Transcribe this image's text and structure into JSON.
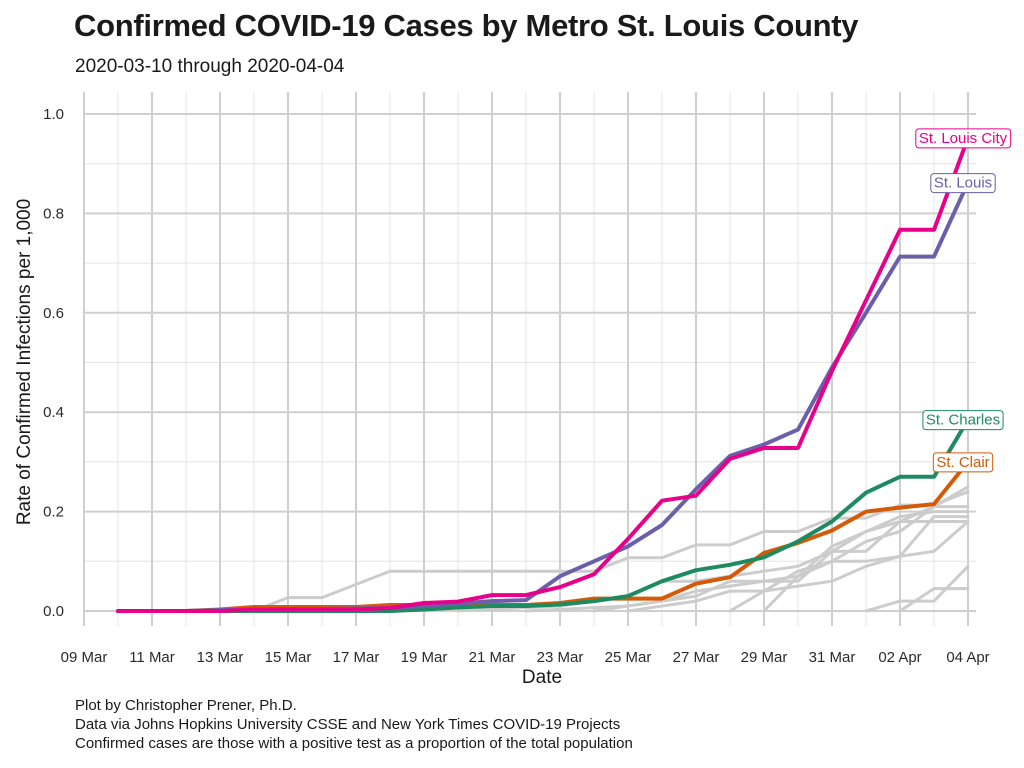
{
  "title": "Confirmed COVID-19 Cases by Metro St. Louis County",
  "subtitle": "2020-03-10 through 2020-04-04",
  "captions": [
    "Plot by Christopher Prener, Ph.D.",
    "Data via Johns Hopkins University CSSE and New York Times COVID-19 Projects",
    "Confirmed cases are those with a positive test as a proportion of the total population"
  ],
  "chart_data": {
    "type": "line",
    "xlabel": "Date",
    "ylabel": "Rate of Confirmed Infections per 1,000",
    "ylim": [
      0,
      1.0
    ],
    "y_ticks": [
      0.0,
      0.2,
      0.4,
      0.6,
      0.8,
      1.0
    ],
    "y_tick_labels": [
      "0.0",
      "0.2",
      "0.4",
      "0.6",
      "0.8",
      "1.0"
    ],
    "x_range": [
      "2020-03-09",
      "2020-04-04"
    ],
    "x_ticks": [
      "2020-03-09",
      "2020-03-11",
      "2020-03-13",
      "2020-03-15",
      "2020-03-17",
      "2020-03-19",
      "2020-03-21",
      "2020-03-23",
      "2020-03-25",
      "2020-03-27",
      "2020-03-29",
      "2020-03-31",
      "2020-04-02",
      "2020-04-04"
    ],
    "x_tick_labels": [
      "09 Mar",
      "11 Mar",
      "13 Mar",
      "15 Mar",
      "17 Mar",
      "19 Mar",
      "21 Mar",
      "23 Mar",
      "25 Mar",
      "27 Mar",
      "29 Mar",
      "31 Mar",
      "02 Apr",
      "04 Apr"
    ],
    "grid": true,
    "highlighted_series": [
      {
        "name": "St. Louis City",
        "color": "#e7008a",
        "x": [
          "2020-03-10",
          "2020-03-11",
          "2020-03-12",
          "2020-03-13",
          "2020-03-14",
          "2020-03-15",
          "2020-03-16",
          "2020-03-17",
          "2020-03-18",
          "2020-03-19",
          "2020-03-20",
          "2020-03-21",
          "2020-03-22",
          "2020-03-23",
          "2020-03-24",
          "2020-03-25",
          "2020-03-26",
          "2020-03-27",
          "2020-03-28",
          "2020-03-29",
          "2020-03-30",
          "2020-03-31",
          "2020-04-01",
          "2020-04-02",
          "2020-04-03",
          "2020-04-04"
        ],
        "y": [
          0,
          0,
          0,
          0,
          0.003,
          0.003,
          0.003,
          0.003,
          0.006,
          0.016,
          0.019,
          0.032,
          0.032,
          0.048,
          0.074,
          0.145,
          0.222,
          0.232,
          0.306,
          0.328,
          0.328,
          0.483,
          0.625,
          0.767,
          0.767,
          0.952
        ]
      },
      {
        "name": "St. Louis",
        "color": "#6a5fa8",
        "x": [
          "2020-03-10",
          "2020-03-11",
          "2020-03-12",
          "2020-03-13",
          "2020-03-14",
          "2020-03-15",
          "2020-03-16",
          "2020-03-17",
          "2020-03-18",
          "2020-03-19",
          "2020-03-20",
          "2020-03-21",
          "2020-03-22",
          "2020-03-23",
          "2020-03-24",
          "2020-03-25",
          "2020-03-26",
          "2020-03-27",
          "2020-03-28",
          "2020-03-29",
          "2020-03-30",
          "2020-03-31",
          "2020-04-01",
          "2020-04-02",
          "2020-04-03",
          "2020-04-04"
        ],
        "y": [
          0,
          0,
          0,
          0.002,
          0.003,
          0.004,
          0.004,
          0.005,
          0.006,
          0.01,
          0.015,
          0.02,
          0.022,
          0.07,
          0.1,
          0.13,
          0.173,
          0.245,
          0.312,
          0.335,
          0.365,
          0.49,
          0.6,
          0.713,
          0.713,
          0.862
        ]
      },
      {
        "name": "St. Charles",
        "color": "#1e8a60",
        "x": [
          "2020-03-10",
          "2020-03-11",
          "2020-03-12",
          "2020-03-13",
          "2020-03-14",
          "2020-03-15",
          "2020-03-16",
          "2020-03-17",
          "2020-03-18",
          "2020-03-19",
          "2020-03-20",
          "2020-03-21",
          "2020-03-22",
          "2020-03-23",
          "2020-03-24",
          "2020-03-25",
          "2020-03-26",
          "2020-03-27",
          "2020-03-28",
          "2020-03-29",
          "2020-03-30",
          "2020-03-31",
          "2020-04-01",
          "2020-04-02",
          "2020-04-03",
          "2020-04-04"
        ],
        "y": [
          0,
          0,
          0,
          0,
          0,
          0,
          0,
          0,
          0,
          0.003,
          0.007,
          0.01,
          0.01,
          0.013,
          0.02,
          0.03,
          0.06,
          0.082,
          0.093,
          0.108,
          0.14,
          0.18,
          0.238,
          0.27,
          0.27,
          0.385
        ]
      },
      {
        "name": "St. Clair",
        "color": "#d45a08",
        "x": [
          "2020-03-10",
          "2020-03-11",
          "2020-03-12",
          "2020-03-13",
          "2020-03-14",
          "2020-03-15",
          "2020-03-16",
          "2020-03-17",
          "2020-03-18",
          "2020-03-19",
          "2020-03-20",
          "2020-03-21",
          "2020-03-22",
          "2020-03-23",
          "2020-03-24",
          "2020-03-25",
          "2020-03-26",
          "2020-03-27",
          "2020-03-28",
          "2020-03-29",
          "2020-03-30",
          "2020-03-31",
          "2020-04-01",
          "2020-04-02",
          "2020-04-03",
          "2020-04-04"
        ],
        "y": [
          0,
          0,
          0,
          0.003,
          0.008,
          0.008,
          0.008,
          0.008,
          0.012,
          0.012,
          0.012,
          0.012,
          0.012,
          0.016,
          0.025,
          0.025,
          0.025,
          0.055,
          0.068,
          0.117,
          0.137,
          0.162,
          0.2,
          0.208,
          0.215,
          0.3
        ]
      }
    ],
    "background_series_color": "#cccccc",
    "background_series": [
      {
        "x": [
          "2020-03-14",
          "2020-03-15",
          "2020-03-16",
          "2020-03-18",
          "2020-03-23",
          "2020-03-24",
          "2020-03-25",
          "2020-03-26",
          "2020-03-27",
          "2020-03-28",
          "2020-03-29",
          "2020-03-30",
          "2020-03-31",
          "2020-04-01",
          "2020-04-02",
          "2020-04-03",
          "2020-04-04"
        ],
        "y": [
          0,
          0.027,
          0.027,
          0.08,
          0.08,
          0.08,
          0.107,
          0.107,
          0.133,
          0.133,
          0.16,
          0.16,
          0.187,
          0.187,
          0.213,
          0.213,
          0.24
        ]
      },
      {
        "x": [
          "2020-03-20",
          "2020-03-23",
          "2020-03-25",
          "2020-03-26",
          "2020-03-27",
          "2020-03-28",
          "2020-03-29",
          "2020-03-30",
          "2020-03-31",
          "2020-04-01",
          "2020-04-02",
          "2020-04-03",
          "2020-04-04"
        ],
        "y": [
          0,
          0.01,
          0.03,
          0.06,
          0.06,
          0.07,
          0.08,
          0.09,
          0.12,
          0.16,
          0.19,
          0.2,
          0.2
        ]
      },
      {
        "x": [
          "2020-03-22",
          "2020-03-25",
          "2020-03-26",
          "2020-03-27",
          "2020-03-28",
          "2020-03-29",
          "2020-03-30",
          "2020-03-31",
          "2020-04-01",
          "2020-04-02",
          "2020-04-03",
          "2020-04-04"
        ],
        "y": [
          0,
          0.01,
          0.02,
          0.04,
          0.05,
          0.06,
          0.07,
          0.13,
          0.16,
          0.18,
          0.21,
          0.25
        ]
      },
      {
        "x": [
          "2020-03-24",
          "2020-03-26",
          "2020-03-27",
          "2020-03-28",
          "2020-03-29",
          "2020-03-30",
          "2020-03-31",
          "2020-04-01",
          "2020-04-02",
          "2020-04-03",
          "2020-04-04"
        ],
        "y": [
          0,
          0.02,
          0.03,
          0.06,
          0.06,
          0.06,
          0.12,
          0.12,
          0.18,
          0.18,
          0.18
        ]
      },
      {
        "x": [
          "2020-03-25",
          "2020-03-27",
          "2020-03-28",
          "2020-03-29",
          "2020-03-30",
          "2020-03-31",
          "2020-04-01",
          "2020-04-02",
          "2020-04-03",
          "2020-04-04"
        ],
        "y": [
          0,
          0.02,
          0.04,
          0.04,
          0.08,
          0.1,
          0.14,
          0.16,
          0.21,
          0.21
        ]
      },
      {
        "x": [
          "2020-03-28",
          "2020-03-29",
          "2020-03-30",
          "2020-03-31",
          "2020-04-01",
          "2020-04-02",
          "2020-04-03",
          "2020-04-04"
        ],
        "y": [
          0,
          0.04,
          0.05,
          0.06,
          0.09,
          0.11,
          0.12,
          0.18
        ]
      },
      {
        "x": [
          "2020-03-29",
          "2020-03-30",
          "2020-03-31",
          "2020-04-01",
          "2020-04-02",
          "2020-04-03",
          "2020-04-04"
        ],
        "y": [
          0,
          0.07,
          0.1,
          0.1,
          0.11,
          0.19,
          0.19
        ]
      },
      {
        "x": [
          "2020-04-01",
          "2020-04-02",
          "2020-04-03",
          "2020-04-04"
        ],
        "y": [
          0,
          0.02,
          0.02,
          0.09
        ]
      },
      {
        "x": [
          "2020-04-02",
          "2020-04-03",
          "2020-04-04"
        ],
        "y": [
          0,
          0.045,
          0.045
        ]
      }
    ]
  }
}
